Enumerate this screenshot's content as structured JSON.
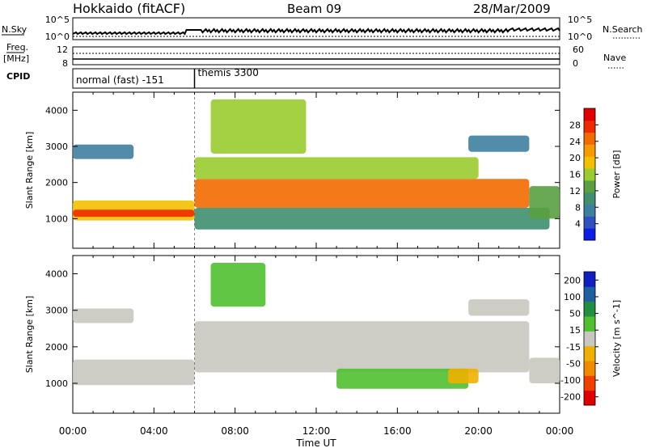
{
  "header": {
    "station": "Hokkaido (fitACF)",
    "beam": "Beam 09",
    "date": "28/Mar/2009"
  },
  "summary_panels": {
    "nsky_label": "N.Sky",
    "nsky_ticks": [
      "10^5",
      "10^0"
    ],
    "nsearch_label": "N.Search",
    "nsearch_ticks": [
      "10^5",
      "10^0"
    ],
    "freq_label_top": "Freq.",
    "freq_label_unit": "[MHz]",
    "freq_ticks": [
      "12",
      "8"
    ],
    "nave_label": "Nave",
    "nave_ticks": [
      "60",
      "0"
    ],
    "cpid_label": "CPID",
    "cpid_segments": [
      {
        "name": "normal (fast) -151",
        "start_hour": 0,
        "end_hour": 6
      },
      {
        "name": "themis 3300",
        "start_hour": 6,
        "end_hour": 24
      }
    ]
  },
  "chart_data": [
    {
      "type": "heatmap",
      "panel": "power",
      "ylabel": "Slant Range [km]",
      "xlabel": "Time UT",
      "xlim": [
        0,
        24
      ],
      "ylim": [
        180,
        4500
      ],
      "x_ticks": [
        "00:00",
        "04:00",
        "08:00",
        "12:00",
        "16:00",
        "20:00",
        "00:00"
      ],
      "y_ticks": [
        1000,
        2000,
        3000,
        4000
      ],
      "colorbar": {
        "label": "Power [dB]",
        "range": [
          0,
          32
        ],
        "ticks": [
          4,
          8,
          12,
          16,
          20,
          24,
          28
        ],
        "colors": [
          "#0a1ee8",
          "#2f50c0",
          "#3e7fa0",
          "#3f8f70",
          "#5aa040",
          "#9acc30",
          "#f2c000",
          "#f59a00",
          "#f26a00",
          "#ee2a00",
          "#e00000"
        ]
      },
      "regions": [
        {
          "name": "main band",
          "x": [
            0,
            6
          ],
          "y": [
            950,
            1500
          ],
          "value": 20
        },
        {
          "name": "main band core",
          "x": [
            0,
            6
          ],
          "y": [
            1050,
            1250
          ],
          "value": 27
        },
        {
          "name": "early upper patch",
          "x": [
            0,
            3
          ],
          "y": [
            2650,
            3050
          ],
          "value": 8
        },
        {
          "name": "day band",
          "x": [
            6,
            22.5
          ],
          "y": [
            1300,
            2100
          ],
          "value": 26
        },
        {
          "name": "day upper band",
          "x": [
            6,
            20
          ],
          "y": [
            2100,
            2700
          ],
          "value": 16
        },
        {
          "name": "day lower band",
          "x": [
            6,
            23.5
          ],
          "y": [
            700,
            1300
          ],
          "value": 10
        },
        {
          "name": "high range patch",
          "x": [
            6.8,
            11.5
          ],
          "y": [
            2800,
            4300
          ],
          "value": 16
        },
        {
          "name": "late upper patch",
          "x": [
            19.5,
            22.5
          ],
          "y": [
            2850,
            3300
          ],
          "value": 8
        },
        {
          "name": "late band",
          "x": [
            22.5,
            24
          ],
          "y": [
            1000,
            1900
          ],
          "value": 12
        }
      ]
    },
    {
      "type": "heatmap",
      "panel": "velocity",
      "ylabel": "Slant Range [km]",
      "xlabel": "Time UT",
      "xlim": [
        0,
        24
      ],
      "ylim": [
        180,
        4500
      ],
      "x_ticks": [
        "00:00",
        "04:00",
        "08:00",
        "12:00",
        "16:00",
        "20:00",
        "00:00"
      ],
      "y_ticks": [
        1000,
        2000,
        3000,
        4000
      ],
      "colorbar": {
        "label": "Velocity [m s^-1]",
        "range": [
          -250,
          250
        ],
        "ticks": [
          200,
          100,
          50,
          15,
          -15,
          -50,
          -100,
          -200
        ],
        "colors": [
          "#e00000",
          "#f04000",
          "#f08a00",
          "#f0b000",
          "#c8c8c0",
          "#50c030",
          "#209040",
          "#2060a0",
          "#1020c0"
        ]
      },
      "regions": [
        {
          "name": "ground scatter band",
          "x": [
            0,
            6
          ],
          "y": [
            950,
            1650
          ],
          "value": 0
        },
        {
          "name": "day ground scatter",
          "x": [
            6,
            22.5
          ],
          "y": [
            1300,
            2700
          ],
          "value": 0
        },
        {
          "name": "upper patch",
          "x": [
            0,
            3
          ],
          "y": [
            2650,
            3050
          ],
          "value": 0
        },
        {
          "name": "green flow",
          "x": [
            13,
            19.5
          ],
          "y": [
            850,
            1400
          ],
          "value": 60
        },
        {
          "name": "high green patch",
          "x": [
            6.8,
            9.5
          ],
          "y": [
            3100,
            4300
          ],
          "value": 60
        },
        {
          "name": "orange patch",
          "x": [
            18.5,
            20
          ],
          "y": [
            1000,
            1400
          ],
          "value": -60
        },
        {
          "name": "late band",
          "x": [
            22.5,
            24
          ],
          "y": [
            1000,
            1700
          ],
          "value": 0
        },
        {
          "name": "late upper patch",
          "x": [
            19.5,
            22.5
          ],
          "y": [
            2850,
            3300
          ],
          "value": 0
        }
      ]
    }
  ]
}
